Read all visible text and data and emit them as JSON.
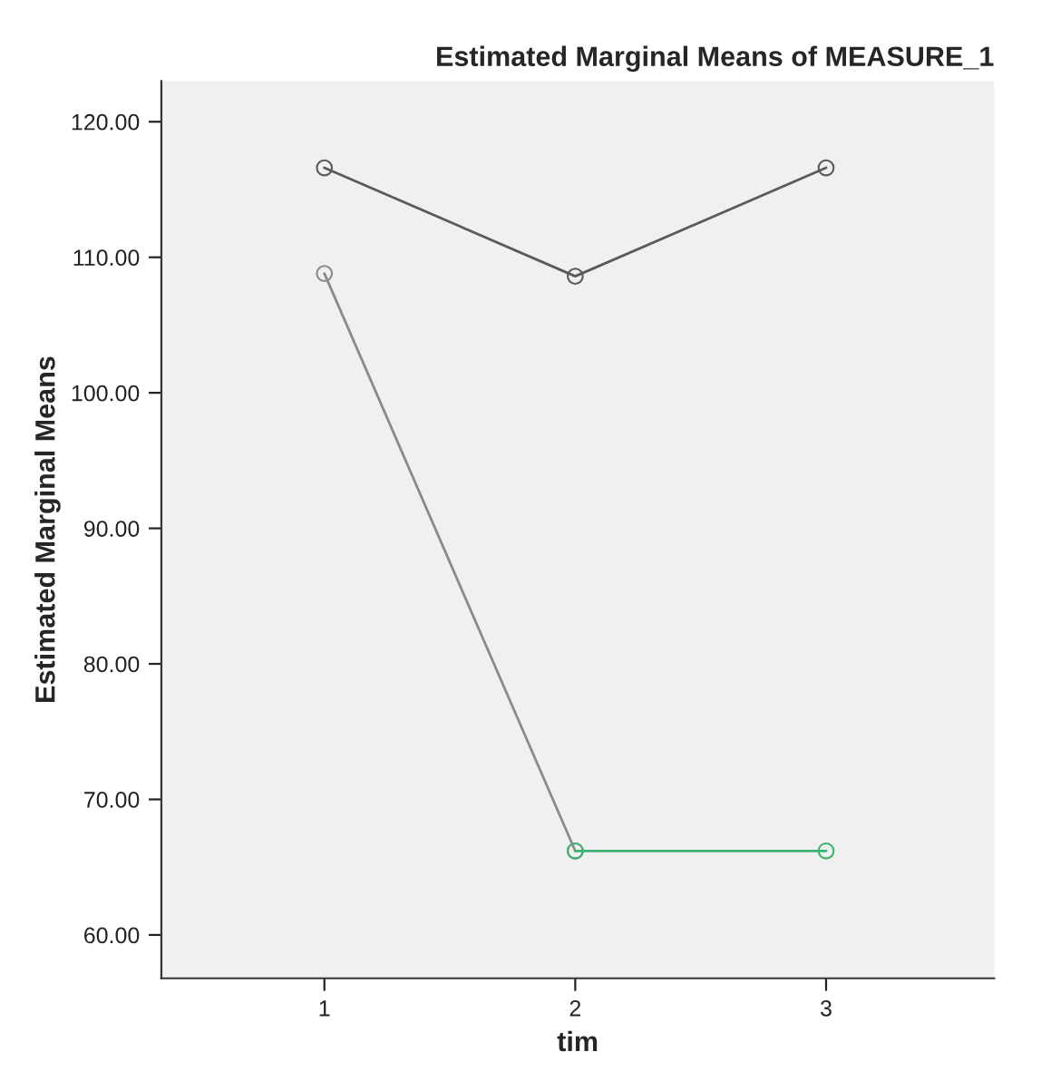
{
  "chart_data": {
    "type": "line",
    "title": "Estimated Marginal Means of MEASURE_1",
    "xlabel": "tim",
    "ylabel": "Estimated Marginal Means",
    "categories": [
      "1",
      "2",
      "3"
    ],
    "series": [
      {
        "color": "#5a5a5a",
        "values": [
          116.6,
          108.6,
          116.6
        ]
      },
      {
        "color": "#8a8a8a",
        "values": [
          108.8,
          66.2,
          null
        ]
      },
      {
        "color": "#3cb371",
        "values": [
          null,
          66.2,
          66.2
        ]
      }
    ],
    "ylim": [
      56.8,
      123.0
    ],
    "yticks": [
      {
        "value": 60,
        "label": "60.00"
      },
      {
        "value": 70,
        "label": "70.00"
      },
      {
        "value": 80,
        "label": "80.00"
      },
      {
        "value": 90,
        "label": "90.00"
      },
      {
        "value": 100,
        "label": "100.00"
      },
      {
        "value": 110,
        "label": "110.00"
      },
      {
        "value": 120,
        "label": "120.00"
      }
    ],
    "grid": false,
    "marker": "circle",
    "line_style": "solid"
  }
}
